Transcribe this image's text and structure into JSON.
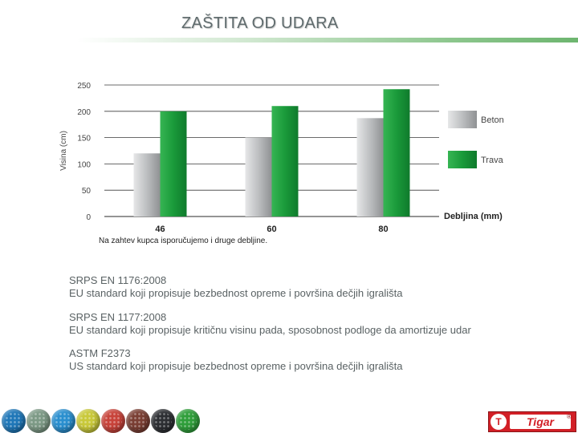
{
  "slide": {
    "title": "ZAŠTITA OD UDARA"
  },
  "chart_data": {
    "type": "bar",
    "categories": [
      "46",
      "60",
      "80"
    ],
    "series": [
      {
        "name": "Beton",
        "values": [
          120,
          150,
          187
        ],
        "color": "#b8babc"
      },
      {
        "name": "Trava",
        "values": [
          200,
          210,
          242
        ],
        "color": "#1a9a3a"
      }
    ],
    "xlabel": "Debljina (mm)",
    "ylabel": "Visina (cm)",
    "ylim": [
      0,
      250
    ],
    "yticks": [
      0,
      50,
      100,
      150,
      200,
      250
    ],
    "grid": true,
    "legend": "right",
    "note": "Na zahtev kupca isporučujemo i druge debljine."
  },
  "standards": [
    {
      "code": "SRPS EN 1176:2008",
      "description": "EU standard koji propisuje bezbednost opreme i površina dečjih igrališta"
    },
    {
      "code": "SRPS EN 1177:2008",
      "description": "EU standard koji propisuje kritičnu visinu pada, sposobnost podloge da amortizuje udar"
    },
    {
      "code": "ASTM F2373",
      "description": "US standard koji propisuje bezbednost opreme i površina dečjih igrališta"
    }
  ],
  "pellets": [
    {
      "name": "blue",
      "color": "#1f77b8"
    },
    {
      "name": "grey-green",
      "color": "#7d9a86"
    },
    {
      "name": "light-blue",
      "color": "#2a8fcf"
    },
    {
      "name": "yellow",
      "color": "#c9c93a"
    },
    {
      "name": "red",
      "color": "#c8433a"
    },
    {
      "name": "brown",
      "color": "#7a3f34"
    },
    {
      "name": "black",
      "color": "#2d2f33"
    },
    {
      "name": "green",
      "color": "#2f9e3a"
    }
  ],
  "logo": {
    "emblem": "T",
    "wordmark": "Tigar",
    "mark": "®"
  }
}
